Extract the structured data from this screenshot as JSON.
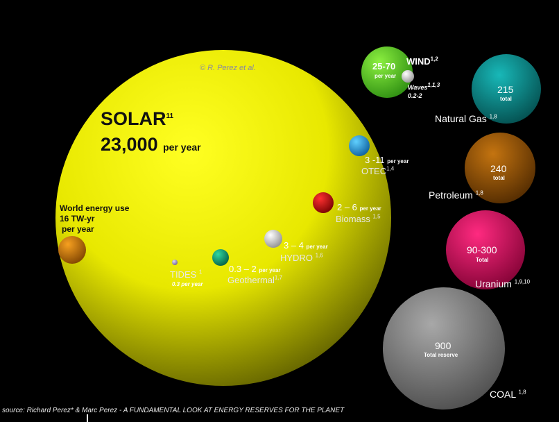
{
  "credit": "© R. Perez et al.",
  "source": "source: Richard Perez* & Marc Perez  - A FUNDAMENTAL LOOK AT ENERGY RESERVES FOR THE PLANET",
  "solar": {
    "name": "SOLAR",
    "sup": "11",
    "value": "23,000",
    "unit": "per year",
    "color": "#f2f200"
  },
  "world_use": {
    "line1": "World energy use",
    "line2": "16 TW-yr",
    "line3": "per year",
    "color": "#d87a00"
  },
  "renewables": [
    {
      "id": "wind",
      "value": "25-70",
      "unit": "per year",
      "name": "WIND",
      "sup": "1,2",
      "color": "#5ee02a"
    },
    {
      "id": "waves",
      "name": "Waves",
      "sup": "1,1,3",
      "value": "0.2-2",
      "color": "#e6e6e6"
    },
    {
      "id": "otec",
      "value": "3 -11",
      "unit": "per year",
      "name": "OTEC",
      "sup": "1,4",
      "color": "#22a8e0"
    },
    {
      "id": "biomass",
      "value": "2 – 6",
      "unit": "per year",
      "name": "Biomass",
      "sup": "1,5",
      "color": "#d40000"
    },
    {
      "id": "hydro",
      "value": "3 – 4",
      "unit": "per year",
      "name": "HYDRO",
      "sup": "1,6",
      "color": "#f0f0f0"
    },
    {
      "id": "geothermal",
      "value": "0.3 – 2",
      "unit": "per year",
      "name": "Geothermal",
      "sup": "1,7",
      "color": "#11a878"
    },
    {
      "id": "tides",
      "name": "TIDES",
      "sup": "1",
      "value": "0.3 per year",
      "color": "#b0a0d0"
    }
  ],
  "reserves": [
    {
      "id": "natural-gas",
      "value": "215",
      "unit": "total",
      "name": "Natural Gas",
      "sup": "1,8",
      "color": "#0a9a9a"
    },
    {
      "id": "petroleum",
      "value": "240",
      "unit": "total",
      "name": "Petroleum",
      "sup": "1,8",
      "color": "#a05a00"
    },
    {
      "id": "uranium",
      "value": "90-300",
      "unit": "Total",
      "name": "Uranium",
      "sup": "1,9,10",
      "color": "#e0105e"
    },
    {
      "id": "coal",
      "value": "900",
      "unit": "Total reserve",
      "name": "COAL",
      "sup": "1,8",
      "color": "#8c8c8c"
    }
  ]
}
